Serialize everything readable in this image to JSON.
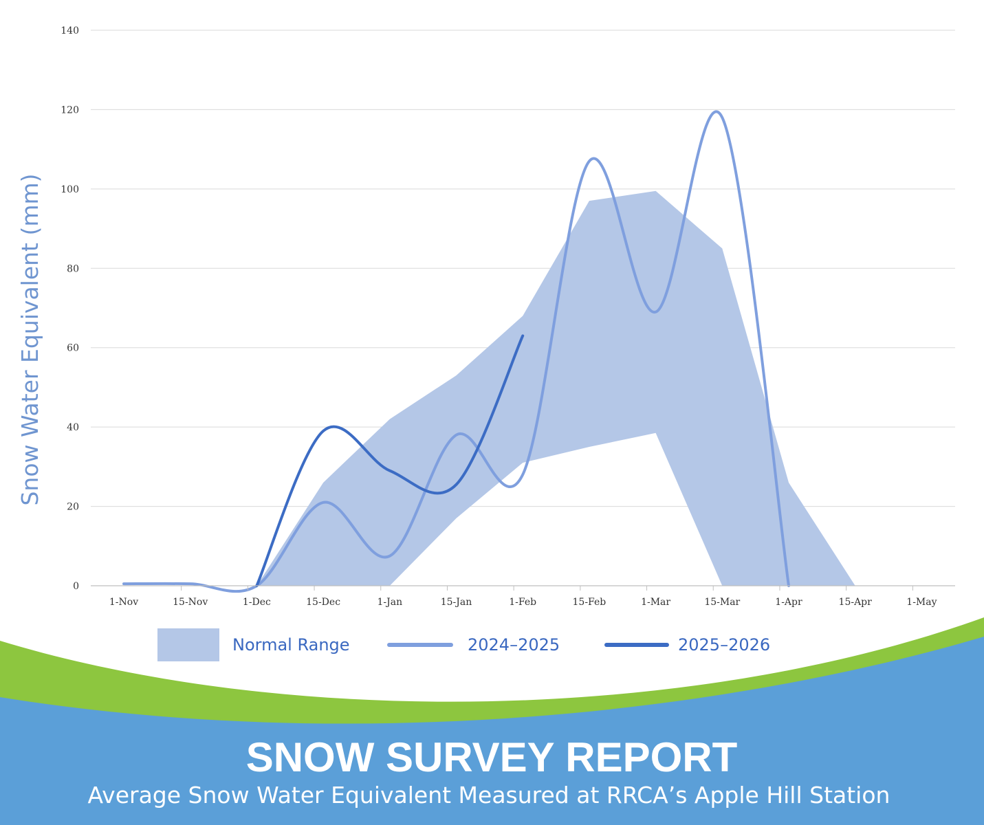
{
  "colors": {
    "normal_range": "#b4c7e7",
    "series_2024_2025": "#7f9fde",
    "series_2025_2026": "#3c6cc4",
    "ylabel": "#6f95d0",
    "legend_text": "#3a68c0",
    "banner_blue": "#5b9fd8",
    "banner_green": "#8dc63f",
    "grid": "#d9d9d9"
  },
  "chart_data": {
    "type": "area",
    "title": "",
    "xlabel": "",
    "ylabel": "Snow Water Equivalent (mm)",
    "ylim": [
      0,
      140
    ],
    "yticks": [
      0,
      20,
      40,
      60,
      80,
      100,
      120,
      140
    ],
    "categories": [
      "1-Nov",
      "15-Nov",
      "1-Dec",
      "15-Dec",
      "1-Jan",
      "15-Jan",
      "1-Feb",
      "15-Feb",
      "1-Mar",
      "15-Mar",
      "1-Apr",
      "15-Apr",
      "1-May"
    ],
    "grid": true,
    "legend_position": "bottom",
    "normal_range": {
      "name": "Normal Range",
      "x": [
        "1-Dec",
        "15-Dec",
        "1-Jan",
        "15-Jan",
        "1-Feb",
        "15-Feb",
        "1-Mar",
        "15-Mar",
        "1-Apr",
        "15-Apr"
      ],
      "upper": [
        0,
        26,
        42,
        53,
        68,
        97,
        99.5,
        85,
        26,
        0
      ],
      "lower": [
        0,
        0,
        0,
        17,
        31,
        35,
        38.5,
        0,
        0,
        0
      ]
    },
    "series": [
      {
        "name": "2024–2025",
        "x": [
          "1-Nov",
          "15-Nov",
          "1-Dec",
          "15-Dec",
          "1-Jan",
          "15-Jan",
          "1-Feb",
          "15-Feb",
          "1-Mar",
          "15-Mar",
          "1-Apr"
        ],
        "values": [
          0.5,
          0.5,
          0,
          21,
          7.5,
          38,
          28,
          107,
          69,
          118,
          0
        ]
      },
      {
        "name": "2025–2026",
        "x": [
          "1-Dec",
          "15-Dec",
          "1-Jan",
          "15-Jan",
          "1-Feb"
        ],
        "values": [
          0,
          39,
          29,
          25.5,
          63
        ]
      }
    ]
  },
  "legend": {
    "normal_range": "Normal Range",
    "series_a": "2024–2025",
    "series_b": "2025–2026"
  },
  "banner": {
    "title": "SNOW SURVEY REPORT",
    "subtitle": "Average Snow Water Equivalent Measured at RRCA’s Apple Hill Station"
  }
}
